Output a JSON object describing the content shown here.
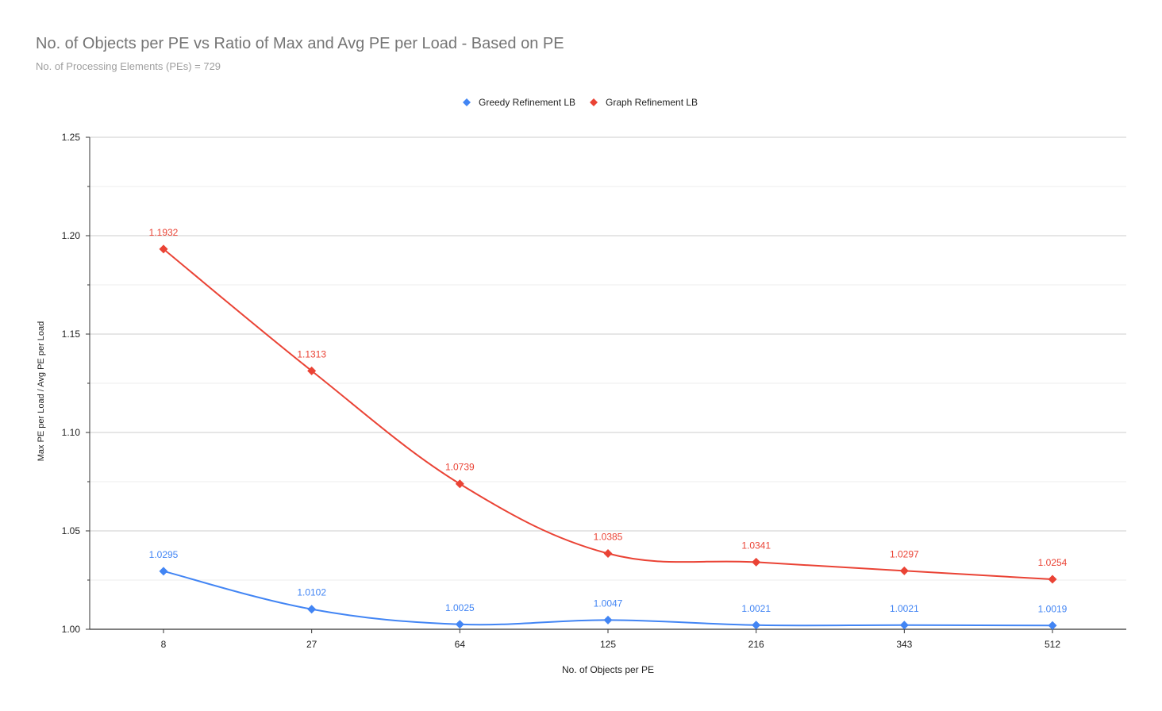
{
  "chart_data": {
    "type": "line",
    "title": "No. of Objects per PE vs Ratio of Max and Avg PE per Load - Based on PE",
    "subtitle": "No. of Processing Elements (PEs) = 729",
    "xlabel": "No. of Objects per PE",
    "ylabel": "Max PE per Load / Avg PE per Load",
    "categories": [
      "8",
      "27",
      "64",
      "125",
      "216",
      "343",
      "512"
    ],
    "ylim": [
      1.0,
      1.25
    ],
    "yticks": [
      "1.00",
      "1.05",
      "1.10",
      "1.15",
      "1.20",
      "1.25"
    ],
    "legend_position": "top",
    "grid": true,
    "smooth": true,
    "series": [
      {
        "name": "Greedy Refinement LB",
        "color": "#4285f4",
        "values": [
          1.0295,
          1.0102,
          1.0025,
          1.0047,
          1.0021,
          1.0021,
          1.0019
        ],
        "labels": [
          "1.0295",
          "1.0102",
          "1.0025",
          "1.0047",
          "1.0021",
          "1.0021",
          "1.0019"
        ]
      },
      {
        "name": "Graph Refinement LB",
        "color": "#ea4335",
        "values": [
          1.1932,
          1.1313,
          1.0739,
          1.0385,
          1.0341,
          1.0297,
          1.0254
        ],
        "labels": [
          "1.1932",
          "1.1313",
          "1.0739",
          "1.0385",
          "1.0341",
          "1.0297",
          "1.0254"
        ]
      }
    ]
  }
}
